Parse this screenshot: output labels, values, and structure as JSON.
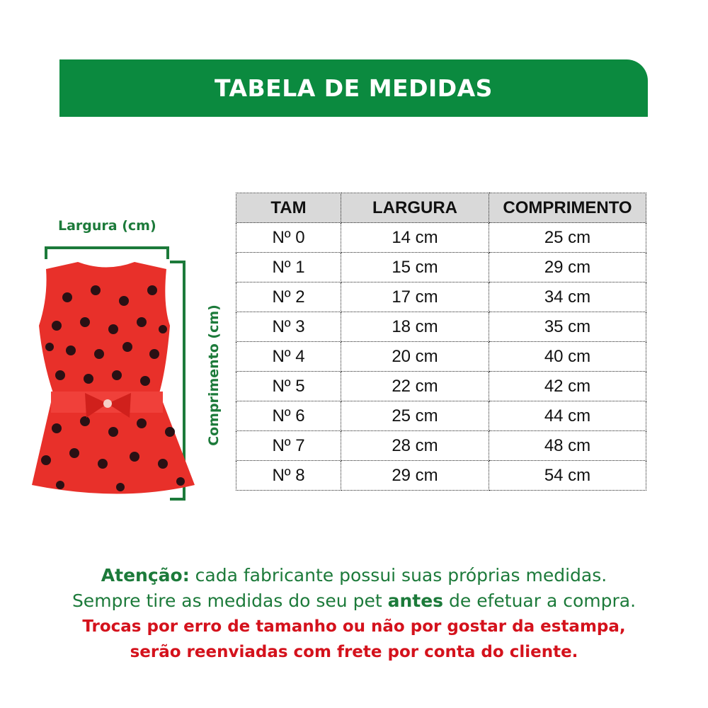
{
  "title": "TABELA DE MEDIDAS",
  "labels": {
    "width": "Largura (cm)",
    "length": "Comprimento (cm)"
  },
  "table": {
    "headers": [
      "TAM",
      "LARGURA",
      "COMPRIMENTO"
    ],
    "rows": [
      [
        "Nº 0",
        "14 cm",
        "25 cm"
      ],
      [
        "Nº 1",
        "15 cm",
        "29 cm"
      ],
      [
        "Nº 2",
        "17 cm",
        "34 cm"
      ],
      [
        "Nº 3",
        "18 cm",
        "35 cm"
      ],
      [
        "Nº 4",
        "20 cm",
        "40 cm"
      ],
      [
        "Nº 5",
        "22 cm",
        "42 cm"
      ],
      [
        "Nº 6",
        "25 cm",
        "44 cm"
      ],
      [
        "Nº 7",
        "28 cm",
        "48 cm"
      ],
      [
        "Nº 8",
        "29 cm",
        "54 cm"
      ]
    ]
  },
  "notes": {
    "attention_label": "Atenção:",
    "attention_text": " cada fabricante possui suas próprias medidas.",
    "line2_a": "Sempre tire as medidas do seu pet ",
    "line2_bold": "antes",
    "line2_b": " de efetuar a compra.",
    "warning1": "Trocas por erro de tamanho ou não por gostar da estampa,",
    "warning2": "serão reenviadas com frete por conta do cliente."
  },
  "colors": {
    "brand_green": "#0b8a3f",
    "text_green": "#1c7a3a",
    "warning_red": "#d4121c",
    "dress_red": "#e8302a"
  }
}
